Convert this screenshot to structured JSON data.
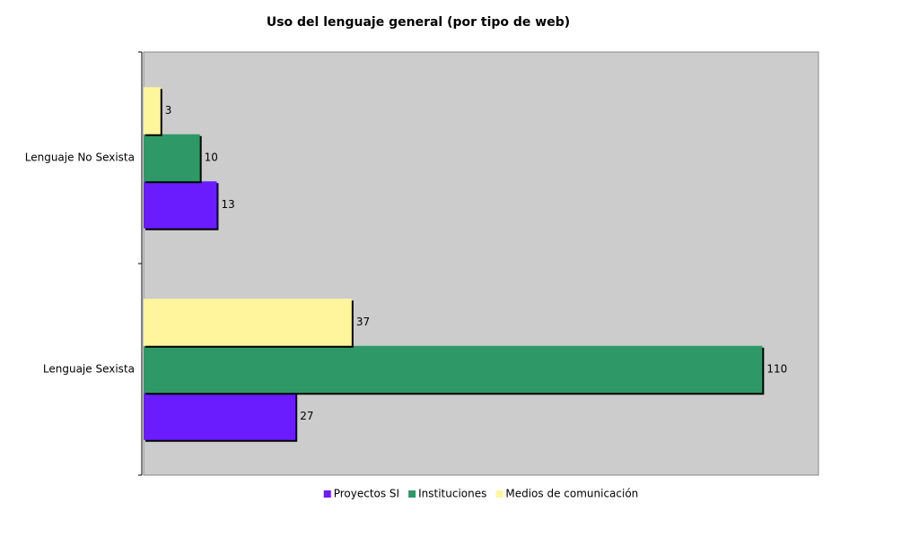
{
  "chart_data": {
    "type": "hbar",
    "title": "Uso del lenguaje general (por tipo de web)",
    "categories": [
      "Lenguaje No Sexista",
      "Lenguaje Sexista"
    ],
    "series": [
      {
        "name": "Proyectos SI",
        "color": "#6a1cff",
        "values": [
          13,
          27
        ]
      },
      {
        "name": "Instituciones",
        "color": "#2e9966",
        "values": [
          10,
          110
        ]
      },
      {
        "name": "Medios de comunicación",
        "color": "#fff59c",
        "values": [
          3,
          37
        ]
      }
    ],
    "xlim": [
      0,
      120
    ],
    "data_labels": true,
    "legend": "bottom"
  }
}
